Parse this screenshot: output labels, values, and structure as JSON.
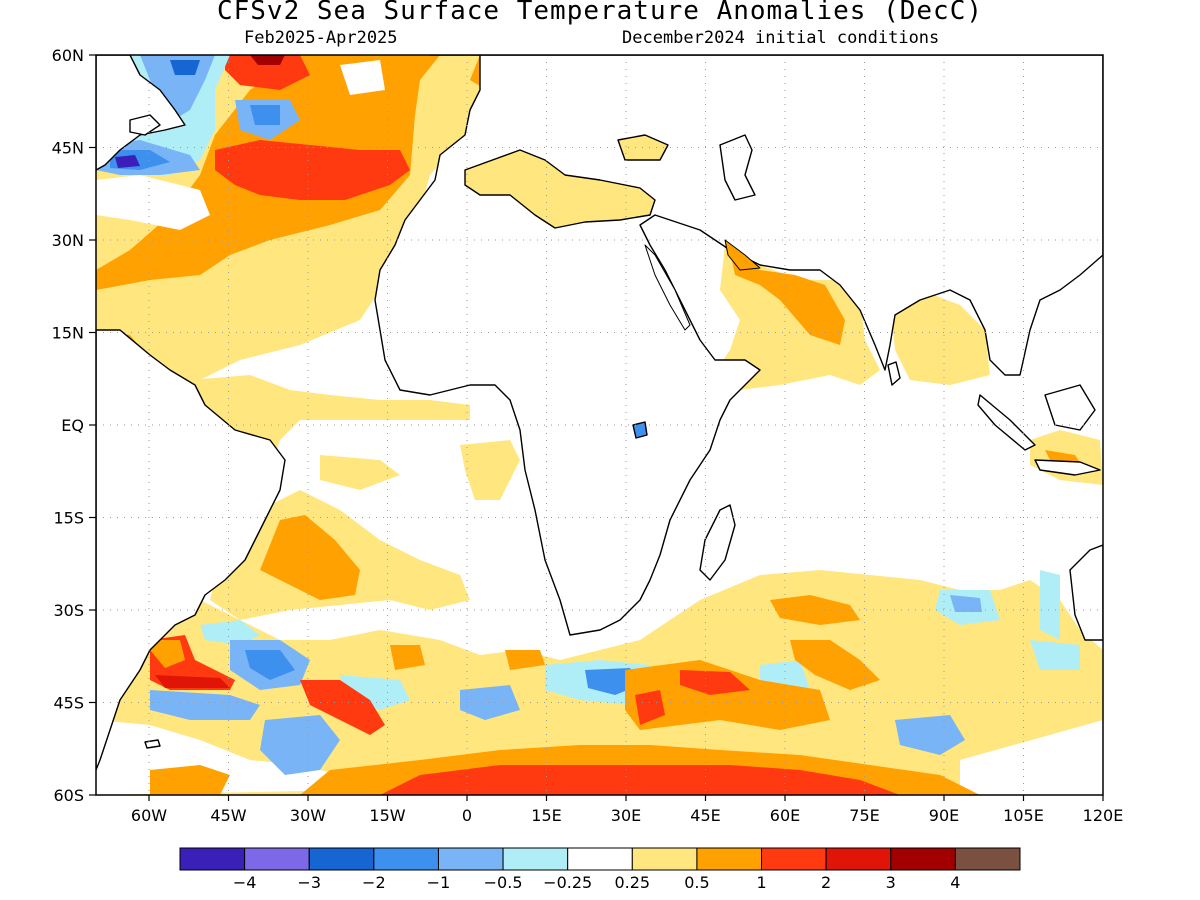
{
  "title": "CFSv2 Sea Surface Temperature Anomalies (DecC)",
  "subtitle_left": "Feb2025-Apr2025",
  "subtitle_right": "December2024 initial conditions",
  "map": {
    "lon_range": [
      -70,
      120
    ],
    "lat_range": [
      -60,
      60
    ],
    "grid": "dotted",
    "lat_ticks": [
      {
        "value": 60,
        "label": "60N"
      },
      {
        "value": 45,
        "label": "45N"
      },
      {
        "value": 30,
        "label": "30N"
      },
      {
        "value": 15,
        "label": "15N"
      },
      {
        "value": 0,
        "label": "EQ"
      },
      {
        "value": -15,
        "label": "15S"
      },
      {
        "value": -30,
        "label": "30S"
      },
      {
        "value": -45,
        "label": "45S"
      },
      {
        "value": -60,
        "label": "60S"
      }
    ],
    "lon_ticks": [
      {
        "value": -60,
        "label": "60W"
      },
      {
        "value": -45,
        "label": "45W"
      },
      {
        "value": -30,
        "label": "30W"
      },
      {
        "value": -15,
        "label": "15W"
      },
      {
        "value": 0,
        "label": "0"
      },
      {
        "value": 15,
        "label": "15E"
      },
      {
        "value": 30,
        "label": "30E"
      },
      {
        "value": 45,
        "label": "45E"
      },
      {
        "value": 60,
        "label": "60E"
      },
      {
        "value": 75,
        "label": "75E"
      },
      {
        "value": 90,
        "label": "90E"
      },
      {
        "value": 105,
        "label": "105E"
      },
      {
        "value": 120,
        "label": "120E"
      }
    ]
  },
  "colorbar": {
    "colors": [
      "#3a1fb8",
      "#7d68e8",
      "#1565d2",
      "#3d90ee",
      "#78b4f6",
      "#b0eef7",
      "#ffffff",
      "#ffe67f",
      "#ffa100",
      "#ff3a10",
      "#e01508",
      "#a20000",
      "#7a5040"
    ],
    "labels": [
      "-4",
      "-3",
      "-2",
      "-1",
      "-0.5",
      "-0.25",
      "0.25",
      "0.5",
      "1",
      "2",
      "3",
      "4"
    ]
  }
}
